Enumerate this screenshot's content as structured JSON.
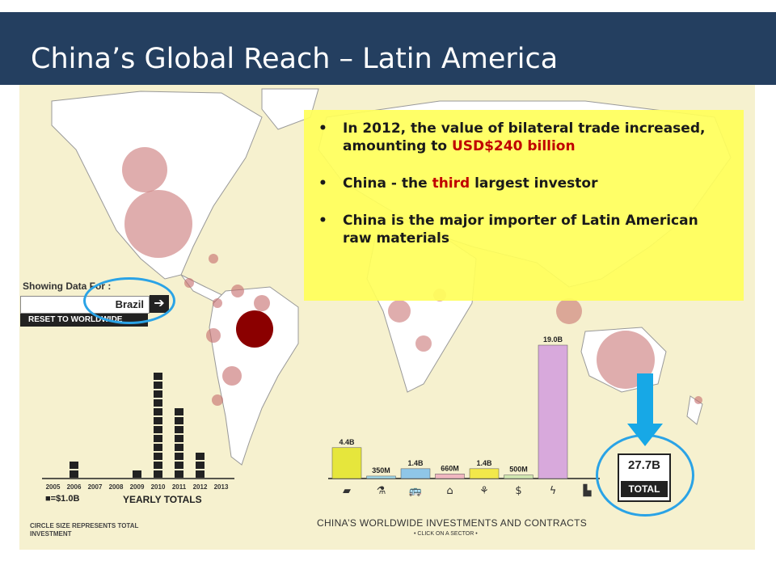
{
  "header": {
    "title": "China’s Global Reach – Latin America"
  },
  "info_box": {
    "bullets": [
      {
        "text_before": "In 2012, the value of bilateral trade increased, amounting to ",
        "highlight": "USD$240 billion",
        "text_after": ""
      },
      {
        "text_before": "China - the ",
        "highlight": "third",
        "text_after": " largest investor"
      },
      {
        "text_before": "China is the major importer of Latin American raw materials",
        "highlight": "",
        "text_after": ""
      }
    ],
    "bullet_glyph": "•"
  },
  "panel": {
    "showing_label": "Showing Data For :",
    "selected_country": "Brazil",
    "go_arrow": "➔",
    "reset_label": "RESET TO WORLDWIDE"
  },
  "chart_data": [
    {
      "type": "bar",
      "title": "YEARLY TOTALS",
      "categories": [
        "2005",
        "2006",
        "2007",
        "2008",
        "2009",
        "2010",
        "2011",
        "2012",
        "2013"
      ],
      "values": [
        0,
        1.5,
        0,
        0,
        0.7,
        12,
        8,
        3,
        0
      ],
      "legend": "■=$1.0B",
      "note": "CIRCLE SIZE REPRESENTS TOTAL INVESTMENT",
      "color": "#222222"
    },
    {
      "type": "bar",
      "title": "CHINA’S WORLDWIDE INVESTMENTS AND CONTRACTS",
      "subtitle": "• CLICK ON A SECTOR •",
      "categories": [
        "Metals",
        "Agriculture-Chemicals",
        "Transport",
        "Real estate",
        "Agriculture",
        "Finance",
        "Energy",
        "Technology"
      ],
      "values_label": [
        "4.4B",
        "350M",
        "1.4B",
        "660M",
        "1.4B",
        "500M",
        "19.0B",
        ""
      ],
      "values": [
        4.4,
        0.35,
        1.4,
        0.66,
        1.4,
        0.5,
        19.0,
        0
      ],
      "colors": [
        "#e6e63c",
        "#9fd8e8",
        "#8fc6e8",
        "#f0b7c0",
        "#f2e84a",
        "#d0e6b0",
        "#d8a9dc",
        "#cccccc"
      ],
      "icons": [
        "▰",
        "⚗",
        "🚌",
        "⌂",
        "⚘",
        "$",
        "ϟ",
        "▙"
      ],
      "total": "27.7B",
      "total_label": "TOTAL"
    }
  ],
  "colors": {
    "header_bg": "#243f60",
    "highlight_red": "#c00000",
    "info_bg": "#ffff5a",
    "circle_annotation": "#2aa3e6"
  }
}
